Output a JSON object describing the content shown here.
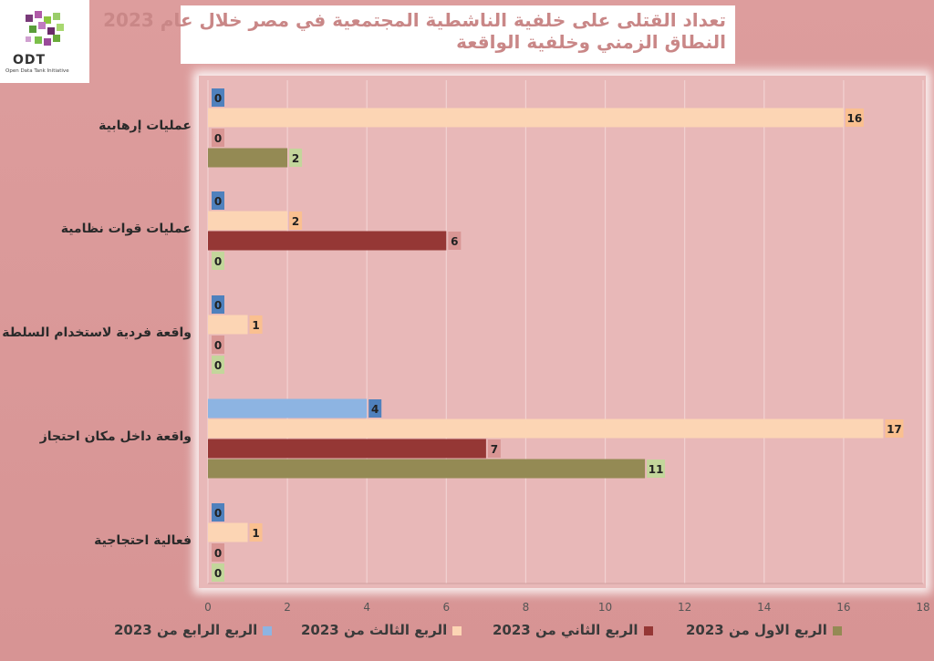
{
  "logo": {
    "text": "ODT",
    "subtitle": "Open Data Tank Initiative"
  },
  "chart_data": {
    "type": "bar",
    "orientation": "horizontal",
    "title": "تعداد القتلى على خلفية الناشطية المجتمعية في مصر خلال عام 2023",
    "subtitle": "النطاق الزمني وخلفية الواقعة",
    "categories": [
      "عمليات إرهابية",
      "عمليات قوات نظامية",
      "واقعة فردية لاستخدام السلطة",
      "واقعة داخل مكان احتجاز",
      "فعالية احتجاجية"
    ],
    "series": [
      {
        "name": "الربع الرابع من 2023",
        "color": "#8db4e2",
        "values": [
          0,
          0,
          0,
          4,
          0
        ]
      },
      {
        "name": "الربع الثالث من 2023",
        "color": "#fcd5b4",
        "values": [
          16,
          2,
          1,
          17,
          1
        ]
      },
      {
        "name": "الربع الثاني من 2023",
        "color": "#953735",
        "values": [
          0,
          6,
          0,
          7,
          0
        ]
      },
      {
        "name": "الربع الاول من 2023",
        "color": "#948a54",
        "values": [
          2,
          0,
          0,
          11,
          0
        ]
      }
    ],
    "label_colors": [
      "#4f81bd",
      "#fac090",
      "#d99694",
      "#c3d69b"
    ],
    "xlim": [
      0,
      18
    ],
    "xticks": [
      0,
      2,
      4,
      6,
      8,
      10,
      12,
      14,
      16,
      18
    ],
    "grid": true,
    "legend_position": "bottom"
  }
}
